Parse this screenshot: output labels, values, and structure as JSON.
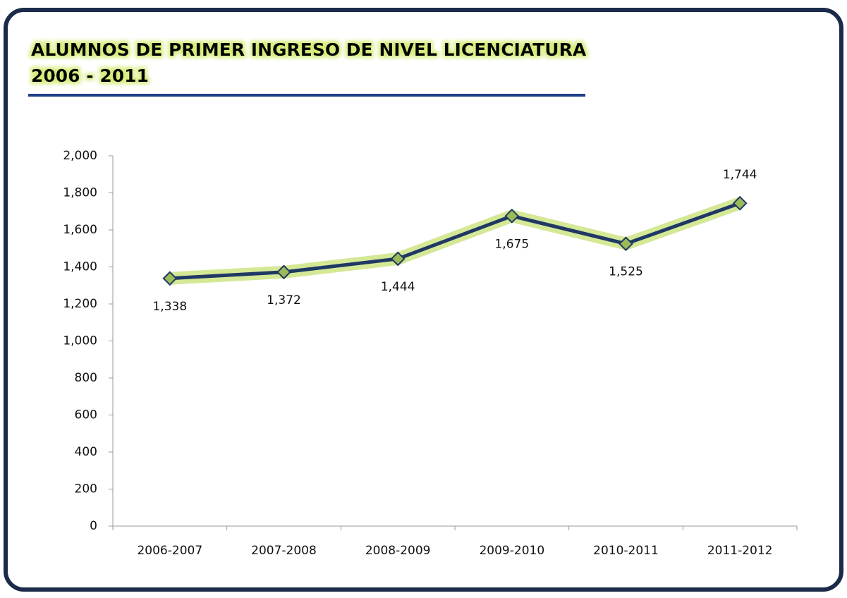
{
  "chart_data": {
    "type": "line",
    "title": "ALUMNOS DE PRIMER INGRESO DE NIVEL LICENCIATURA",
    "subtitle": "2006 - 2011",
    "categories": [
      "2006-2007",
      "2007-2008",
      "2008-2009",
      "2009-2010",
      "2010-2011",
      "2011-2012"
    ],
    "series": [
      {
        "name": null,
        "color": "#1f3864",
        "values": [
          1338,
          1372,
          1444,
          1675,
          1525,
          1744
        ],
        "value_labels": [
          "1,338",
          "1,372",
          "1,444",
          "1,675",
          "1,525",
          "1,744"
        ]
      }
    ],
    "ylim": [
      0,
      2000
    ],
    "yticks": [
      0,
      200,
      400,
      600,
      800,
      {
        "value": 1000,
        "label": "1,000"
      },
      {
        "value": 1200,
        "label": "1,200"
      },
      {
        "value": 1400,
        "label": "1,400"
      },
      {
        "value": 1600,
        "label": "1,600"
      },
      {
        "value": 1800,
        "label": "1,800"
      },
      {
        "value": 2000,
        "label": "2,000"
      }
    ],
    "grid": false
  }
}
